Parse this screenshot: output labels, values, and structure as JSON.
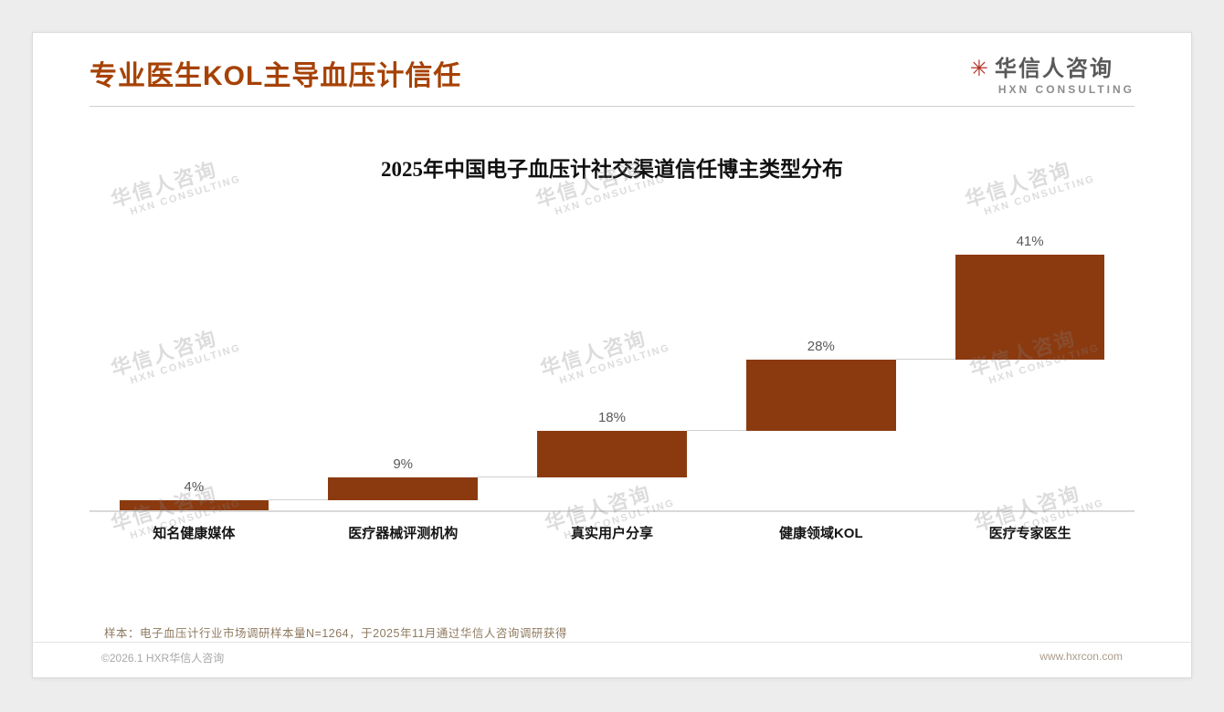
{
  "page": {
    "title": "专业医生KOL主导血压计信任",
    "accent_color": "#A64205",
    "logo": {
      "icon": "✳",
      "name": "华信人咨询",
      "subtitle": "HXN CONSULTING"
    },
    "watermark": {
      "line1": "华信人咨询",
      "line2": "HXN CONSULTING"
    },
    "note": "样本：电子血压计行业市场调研样本量N=1264，于2025年11月通过华信人咨询调研获得",
    "footer": {
      "left": "©2026.1 HXR华信人咨询",
      "right": "www.hxrcon.com"
    }
  },
  "chart_data": {
    "type": "bar",
    "subtype": "waterfall",
    "title": "2025年中国电子血压计社交渠道信任博主类型分布",
    "categories": [
      "知名健康媒体",
      "医疗器械评测机构",
      "真实用户分享",
      "健康领域KOL",
      "医疗专家医生"
    ],
    "values": [
      4,
      9,
      18,
      28,
      41
    ],
    "labels": [
      "4%",
      "9%",
      "18%",
      "28%",
      "41%"
    ],
    "unit": "%",
    "cumulative": true,
    "bar_color": "#8B3A10",
    "value_label_color": "#595959",
    "ylim": [
      0,
      100
    ],
    "grid": false,
    "legend": false
  }
}
